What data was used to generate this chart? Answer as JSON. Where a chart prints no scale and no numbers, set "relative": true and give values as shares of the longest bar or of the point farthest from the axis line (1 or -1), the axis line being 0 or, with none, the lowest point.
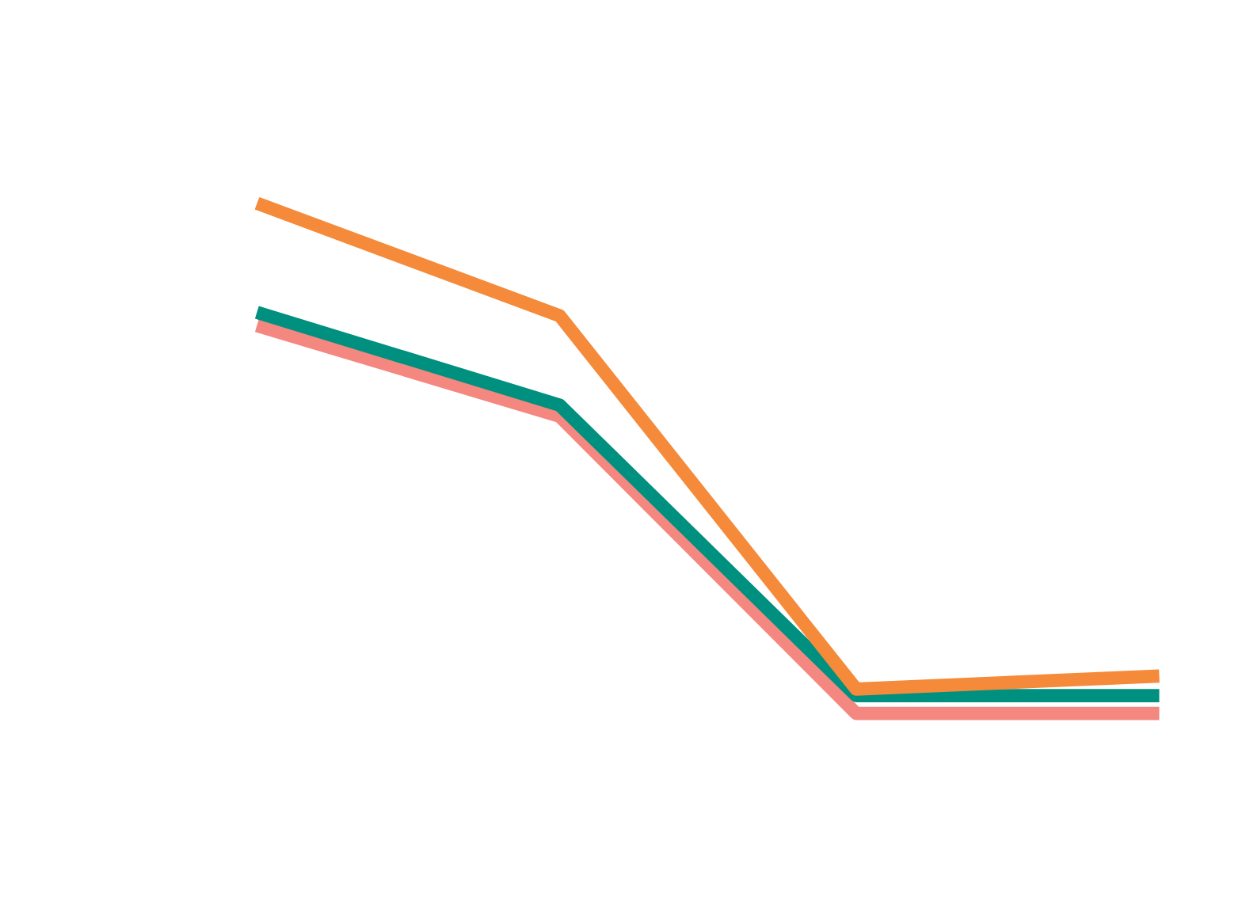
{
  "chart_data": {
    "type": "line",
    "relative": true,
    "categories": [
      null,
      null,
      null,
      null
    ],
    "line_style": "solid",
    "marker": "none",
    "series": [
      {
        "color": "#f4877f",
        "values": [
          0.76,
          0.585,
          0,
          0
        ]
      },
      {
        "color": "#009080",
        "values": [
          0.786,
          0.607,
          0.035,
          0.035
        ]
      },
      {
        "color": "#f58a3a",
        "values": [
          1,
          0.783,
          0.048,
          0.073
        ]
      }
    ]
  }
}
